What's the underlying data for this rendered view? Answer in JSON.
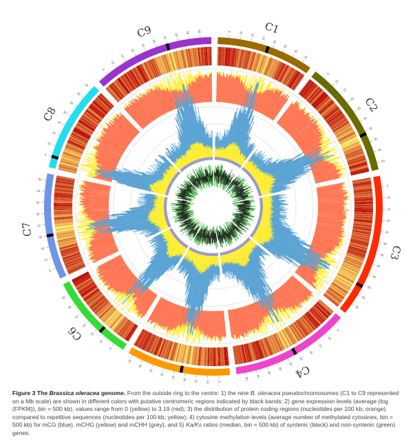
{
  "caption": {
    "label": "Figure 3 The ",
    "label_species": "Brassica oleracea",
    "label_end": " genome.",
    "text1": " From the outside ring to the centre: 1) the nine ",
    "species_abbrev": "B. oleracea",
    "text2": " pseudochromosomes (C1 to C9 represented on a Mb scale) are shown in different colors with putative centromeric regions indicated by black bands; 2) gene expression levels (average (log (FPKM)), bin = 500 kb), values range from 0 (yellow) to 3.19 (red); 3) the distribution of protein coding regions (nucleotides per 100 kb; orange) compared to repetitive sequences (nucleotides per 100 kb; yellow); 4) cytosine methylation levels (average number of methylated cytosines, bin = 500 kb) for mCG (blue), mCHG (yellow) and mCHH (grey); and 5) ",
    "kaks": "Ka/Ks",
    "text3": " ratios (median, bin = 500 kb) of syntenic (black) and non-syntenic (green) genes."
  },
  "chart_data": {
    "type": "circos",
    "tick_interval_mb": 5,
    "chromosomes": [
      {
        "name": "C1",
        "size_mb": 44,
        "centromere_mb": 23,
        "color": "#9a6a00"
      },
      {
        "name": "C2",
        "size_mb": 53,
        "centromere_mb": 36,
        "color": "#6b6b00"
      },
      {
        "name": "C3",
        "size_mb": 65,
        "centromere_mb": 51,
        "color": "#ff2a00"
      },
      {
        "name": "C4",
        "size_mb": 54,
        "centromere_mb": 26,
        "color": "#ee44cc"
      },
      {
        "name": "C5",
        "size_mb": 47,
        "centromere_mb": 22,
        "color": "#ff9900"
      },
      {
        "name": "C6",
        "size_mb": 40,
        "centromere_mb": 13,
        "color": "#33dd33"
      },
      {
        "name": "C7",
        "size_mb": 48,
        "centromere_mb": 20,
        "color": "#6f95e8"
      },
      {
        "name": "C8",
        "size_mb": 42,
        "centromere_mb": 5,
        "color": "#22ddee"
      },
      {
        "name": "C9",
        "size_mb": 55,
        "centromere_mb": 35,
        "color": "#9933cc"
      }
    ],
    "tracks": {
      "gene_expression_range": [
        0,
        3.19
      ],
      "gene_expression_colors": {
        "low": "#ffee66",
        "high": "#bb0000"
      },
      "coding_color": "#ff7755",
      "repeat_color": "#ffee44",
      "mCG_color": "#5aa3d4",
      "mCHG_color": "#ffee33",
      "mCHH_color": "#9999cc",
      "syntenic_color": "#222222",
      "non_syntenic_color": "#33aa33"
    }
  }
}
